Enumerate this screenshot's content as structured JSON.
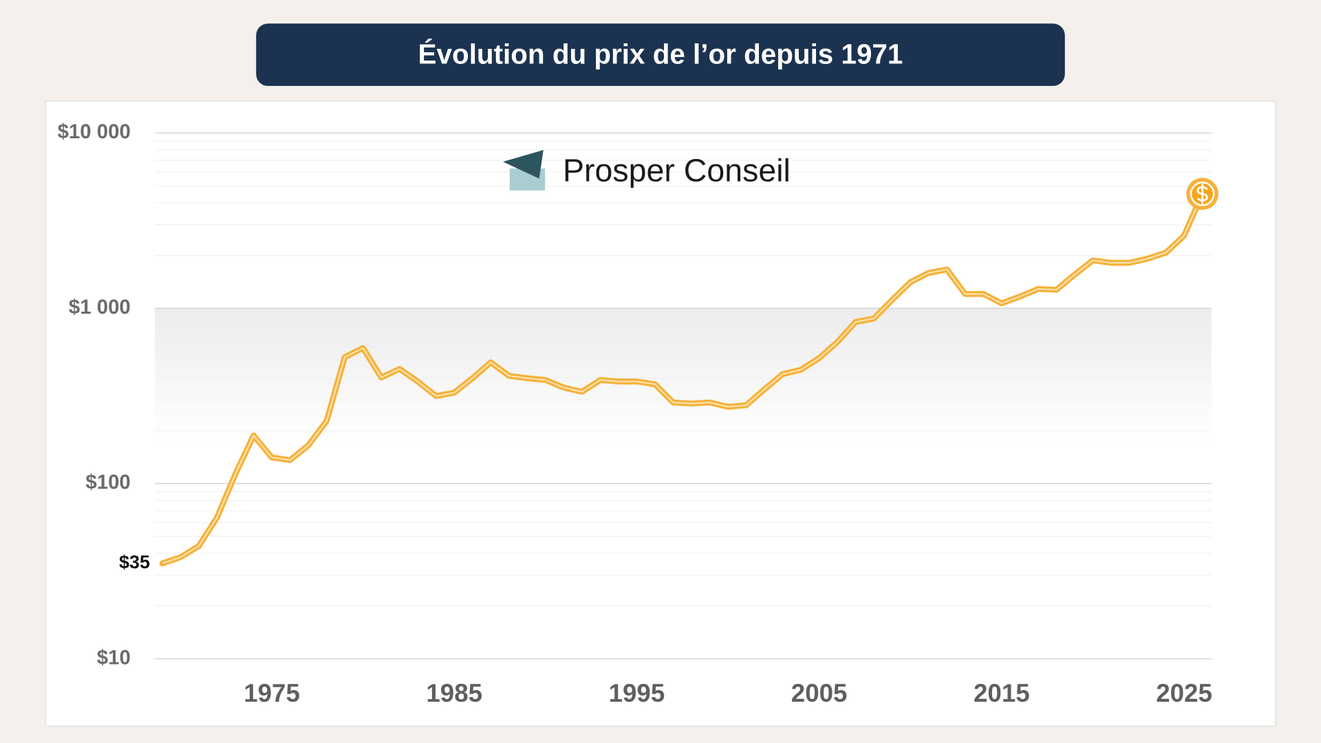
{
  "chart_data": {
    "type": "line",
    "title": "Évolution du prix de l’or depuis 1971",
    "brand": "Prosper Conseil",
    "log_scale": true,
    "grid": true,
    "minor_grid": true,
    "xlim": [
      1968.6,
      2026.5
    ],
    "xticks": [
      1975,
      1985,
      1995,
      2005,
      2015,
      2025
    ],
    "ylim": [
      10,
      10000
    ],
    "yticks": [
      {
        "value": 10,
        "label": "$10"
      },
      {
        "value": 100,
        "label": "$100"
      },
      {
        "value": 1000,
        "label": "$1 000"
      },
      {
        "value": 10000,
        "label": "$10 000"
      }
    ],
    "y_annotation": {
      "value": 35,
      "label": "$35"
    },
    "x": [
      1969,
      1970,
      1971,
      1972,
      1973,
      1974,
      1975,
      1976,
      1977,
      1978,
      1979,
      1980,
      1981,
      1982,
      1983,
      1984,
      1985,
      1986,
      1987,
      1988,
      1989,
      1990,
      1991,
      1992,
      1993,
      1994,
      1995,
      1996,
      1997,
      1998,
      1999,
      2000,
      2001,
      2002,
      2003,
      2004,
      2005,
      2006,
      2007,
      2008,
      2009,
      2010,
      2011,
      2012,
      2013,
      2014,
      2015,
      2016,
      2017,
      2018,
      2019,
      2020,
      2021,
      2022,
      2023,
      2024,
      2025,
      2026
    ],
    "series": [
      {
        "color": "#f6b23c",
        "values": [
          35,
          38,
          44,
          64,
          113,
          188,
          141,
          136,
          165,
          227,
          526,
          594,
          403,
          451,
          382,
          316,
          330,
          399,
          492,
          412,
          399,
          390,
          353,
          334,
          390,
          382,
          382,
          369,
          290,
          286,
          290,
          274,
          280,
          345,
          421,
          446,
          520,
          643,
          837,
          875,
          1117,
          1409,
          1592,
          1665,
          1207,
          1207,
          1069,
          1167,
          1290,
          1276,
          1557,
          1878,
          1818,
          1818,
          1922,
          2076,
          2600,
          4500
        ]
      }
    ]
  }
}
